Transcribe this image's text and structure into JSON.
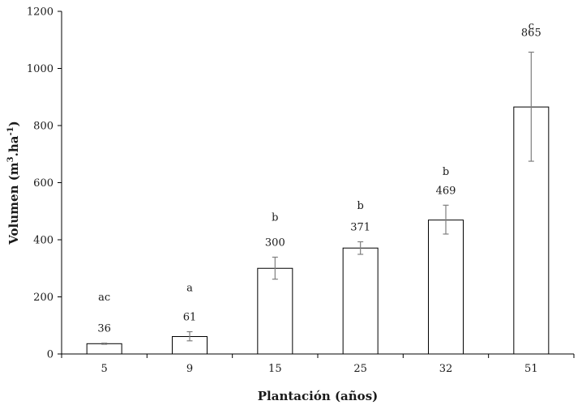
{
  "chart_data": {
    "type": "bar",
    "categories": [
      "5",
      "9",
      "15",
      "25",
      "32",
      "51"
    ],
    "values": [
      36,
      61,
      300,
      371,
      469,
      865
    ],
    "error_low": [
      34,
      46,
      262,
      349,
      420,
      675
    ],
    "error_high": [
      38,
      78,
      339,
      393,
      521,
      1057
    ],
    "value_labels": [
      "36",
      "61",
      "300",
      "371",
      "469",
      "865"
    ],
    "letters": [
      "ac",
      "a",
      "b",
      "b",
      "b",
      "c"
    ],
    "letter_y": [
      200,
      233,
      480,
      520,
      640,
      1150
    ],
    "xlabel": "Plantación (años)",
    "ylabel_main": "Volumen (m",
    "ylabel_sup1": "3",
    "ylabel_mid": ".ha",
    "ylabel_sup2": "-1",
    "ylabel_end": ")",
    "ylim": [
      0,
      1200
    ],
    "yticks": [
      0,
      200,
      400,
      600,
      800,
      1000,
      1200
    ],
    "grid": false,
    "bar_fill": "#ffffff",
    "bar_stroke": "#000000",
    "errorbar_color": "#7f7f7f"
  }
}
